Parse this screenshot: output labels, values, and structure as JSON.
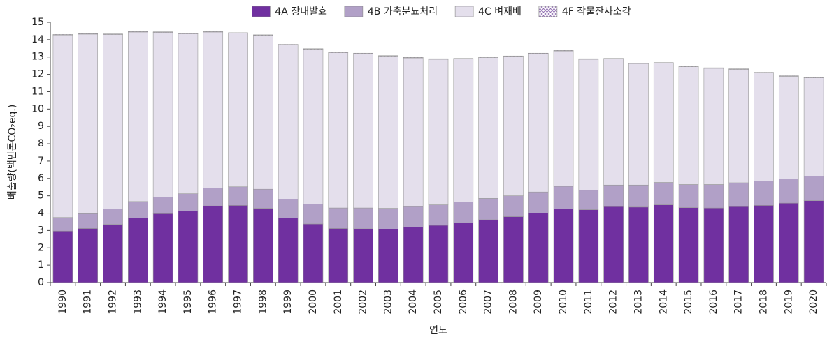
{
  "chart_data": {
    "type": "stacked_bar",
    "y_label": "배출량(백만톤CO₂eq.)",
    "x_label": "연도",
    "categories": [
      "1990",
      "1991",
      "1992",
      "1993",
      "1994",
      "1995",
      "1996",
      "1997",
      "1998",
      "1999",
      "2000",
      "2001",
      "2002",
      "2003",
      "2004",
      "2005",
      "2006",
      "2007",
      "2008",
      "2009",
      "2010",
      "2011",
      "2012",
      "2013",
      "2014",
      "2015",
      "2016",
      "2017",
      "2018",
      "2019",
      "2020"
    ],
    "series": [
      {
        "name": "4A 장내발효",
        "color": "#7030a0",
        "values": [
          2.97,
          3.12,
          3.35,
          3.72,
          3.97,
          4.12,
          4.42,
          4.45,
          4.28,
          3.72,
          3.38,
          3.12,
          3.1,
          3.08,
          3.2,
          3.3,
          3.45,
          3.62,
          3.8,
          4.0,
          4.25,
          4.2,
          4.38,
          4.35,
          4.48,
          4.32,
          4.3,
          4.38,
          4.45,
          4.58,
          4.72
        ]
      },
      {
        "name": "4B 가축분뇨처리",
        "color": "#b1a0c7",
        "values": [
          0.78,
          0.85,
          0.9,
          0.95,
          0.96,
          1.0,
          1.03,
          1.07,
          1.1,
          1.08,
          1.14,
          1.18,
          1.2,
          1.2,
          1.18,
          1.18,
          1.2,
          1.23,
          1.2,
          1.22,
          1.3,
          1.12,
          1.24,
          1.27,
          1.29,
          1.33,
          1.35,
          1.37,
          1.4,
          1.4,
          1.41
        ]
      },
      {
        "name": "4C 벼재배",
        "color": "#e4dfec",
        "values": [
          10.52,
          10.35,
          10.05,
          9.77,
          9.49,
          9.22,
          8.99,
          8.85,
          8.87,
          8.9,
          8.93,
          8.95,
          8.89,
          8.77,
          8.57,
          8.39,
          8.24,
          8.12,
          8.03,
          7.97,
          7.8,
          7.55,
          7.27,
          7.0,
          6.88,
          6.79,
          6.7,
          6.54,
          6.24,
          5.91,
          5.67
        ]
      },
      {
        "name": "4F 작물잔사소각",
        "color": "#8e6bb0",
        "pattern": "crosshatch",
        "values": [
          0.03,
          0.03,
          0.03,
          0.03,
          0.03,
          0.03,
          0.03,
          0.03,
          0.03,
          0.03,
          0.03,
          0.03,
          0.03,
          0.03,
          0.03,
          0.03,
          0.03,
          0.03,
          0.03,
          0.03,
          0.03,
          0.03,
          0.03,
          0.03,
          0.03,
          0.03,
          0.03,
          0.03,
          0.03,
          0.03,
          0.03
        ]
      }
    ],
    "ylim": [
      0,
      15
    ],
    "yticks": [
      0,
      1,
      2,
      3,
      4,
      5,
      6,
      7,
      8,
      9,
      10,
      11,
      12,
      13,
      14,
      15
    ],
    "legend": "top"
  }
}
